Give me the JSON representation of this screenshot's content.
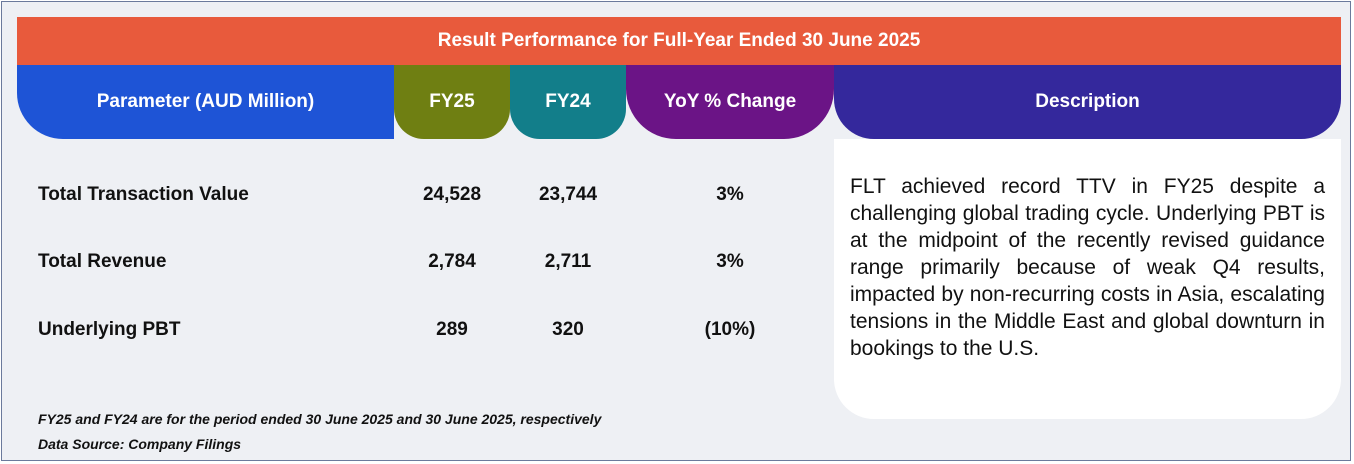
{
  "banner": {
    "title": "Result Performance for Full-Year Ended 30 June 2025"
  },
  "headers": {
    "parameter": "Parameter (AUD Million)",
    "fy25": "FY25",
    "fy24": "FY24",
    "yoy": "YoY % Change",
    "description": "Description"
  },
  "rows": [
    {
      "label": "Total Transaction Value",
      "fy25": "24,528",
      "fy24": "23,744",
      "yoy": "3%"
    },
    {
      "label": "Total Revenue",
      "fy25": "2,784",
      "fy24": "2,711",
      "yoy": "3%"
    },
    {
      "label": "Underlying PBT",
      "fy25": "289",
      "fy24": "320",
      "yoy": "(10%)"
    }
  ],
  "description": {
    "text": "FLT achieved record TTV in FY25 despite a challenging global trading cycle. Underlying PBT is at the midpoint of the recently revised guidance range primarily because of weak Q4 results, impacted by non-recurring costs in Asia, escalating tensions in the Middle East and global downturn in bookings to the U.S."
  },
  "footnotes": {
    "period_note": "FY25 and FY24 are for the period ended 30 June 2025 and 30 June 2025, respectively",
    "source": "Data Source: Company Filings"
  },
  "colors": {
    "banner": "#e85a3c",
    "parameter": "#1e54d6",
    "fy25": "#6f7f12",
    "fy24": "#127e8a",
    "yoy": "#6b1486",
    "description": "#34289c"
  }
}
